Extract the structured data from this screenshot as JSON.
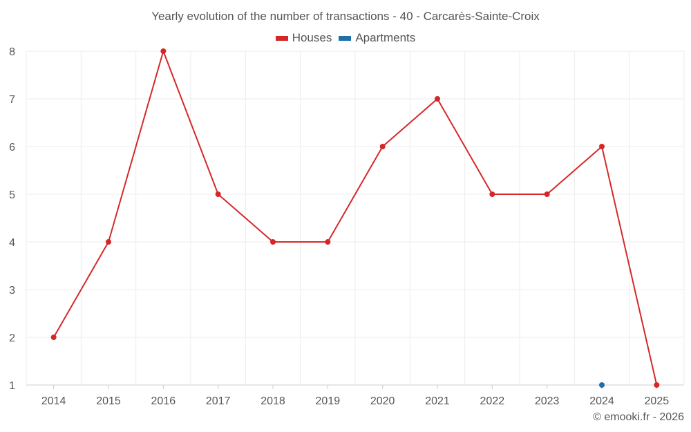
{
  "chart_data": {
    "type": "line",
    "title": "Yearly evolution of the number of transactions - 40 - Carcarès-Sainte-Croix",
    "categories": [
      "2014",
      "2015",
      "2016",
      "2017",
      "2018",
      "2019",
      "2020",
      "2021",
      "2022",
      "2023",
      "2024",
      "2025"
    ],
    "series": [
      {
        "name": "Houses",
        "color": "#d62728",
        "values": [
          2,
          4,
          8,
          5,
          4,
          4,
          6,
          7,
          5,
          5,
          6,
          1
        ]
      },
      {
        "name": "Apartments",
        "color": "#1f6fa8",
        "values": [
          null,
          null,
          null,
          null,
          null,
          null,
          null,
          null,
          null,
          null,
          1,
          null
        ]
      }
    ],
    "ylim": [
      1,
      8
    ],
    "yticks": [
      "1",
      "2",
      "3",
      "4",
      "5",
      "6",
      "7",
      "8"
    ],
    "xlabel": "",
    "ylabel": "",
    "grid": true,
    "legend_position": "top-center"
  },
  "credit": "© emooki.fr - 2026"
}
